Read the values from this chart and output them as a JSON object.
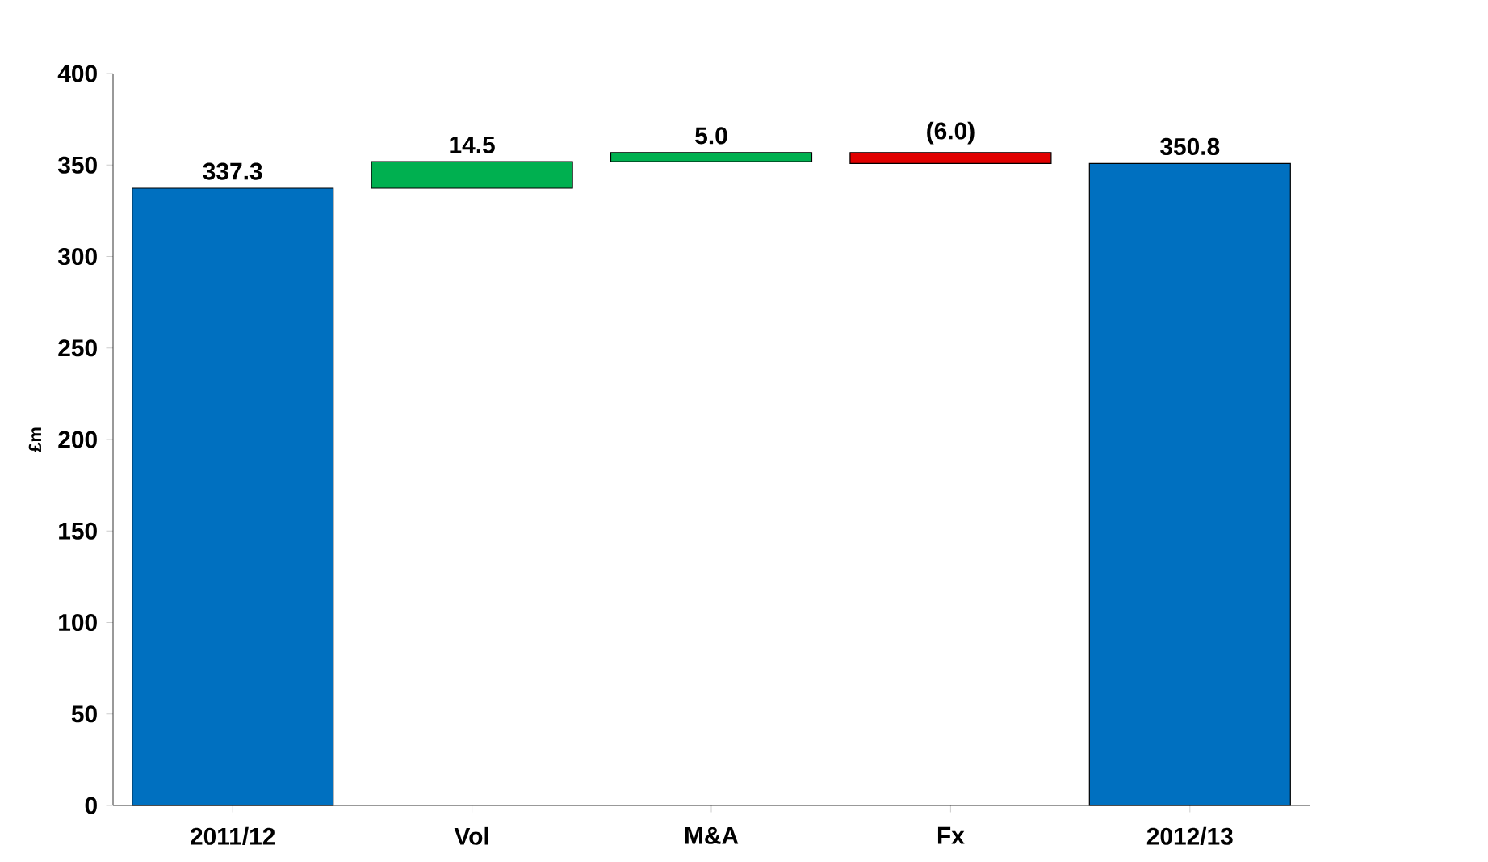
{
  "chart_data": {
    "type": "bar",
    "ylabel": "£m",
    "categories": [
      "2011/12",
      "Vol",
      "M&A",
      "Fx",
      "2012/13"
    ],
    "values": [
      337.3,
      14.5,
      5.0,
      -6.0,
      350.8
    ],
    "base": [
      0,
      337.3,
      351.8,
      356.8,
      0
    ],
    "colors": [
      "#0070c0",
      "#00b050",
      "#00b050",
      "#e00000",
      "#0070c0"
    ],
    "value_labels": [
      "337.3",
      "14.5",
      "5.0",
      "(6.0)",
      "350.8"
    ],
    "ylim": [
      0,
      400
    ],
    "yticks": [
      0,
      50,
      100,
      150,
      200,
      250,
      300,
      350,
      400
    ]
  }
}
